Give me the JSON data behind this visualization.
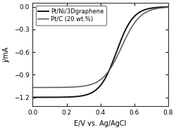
{
  "title": "",
  "xlabel": "E/V vs. Ag/AgCl",
  "ylabel": "j/mA",
  "xlim": [
    0.0,
    0.8
  ],
  "ylim": [
    -1.32,
    0.05
  ],
  "yticks": [
    0.0,
    -0.3,
    -0.6,
    -0.9,
    -1.2
  ],
  "xticks": [
    0.0,
    0.2,
    0.4,
    0.6,
    0.8
  ],
  "series": [
    {
      "label": "Pt/Ni/3Dgraphene",
      "color": "#111111",
      "linewidth": 1.4,
      "j_limit": -1.2,
      "midpoint": 0.495,
      "steepness": 20.0
    },
    {
      "label": "Pt/C (20 wt.%)",
      "color": "#555555",
      "linewidth": 1.1,
      "j_limit": -1.07,
      "midpoint": 0.525,
      "steepness": 18.0
    }
  ],
  "legend_loc": "upper left",
  "legend_fontsize": 6.0,
  "axis_fontsize": 7.0,
  "tick_fontsize": 6.5,
  "background_color": "#ffffff",
  "figure_background": "#ffffff"
}
